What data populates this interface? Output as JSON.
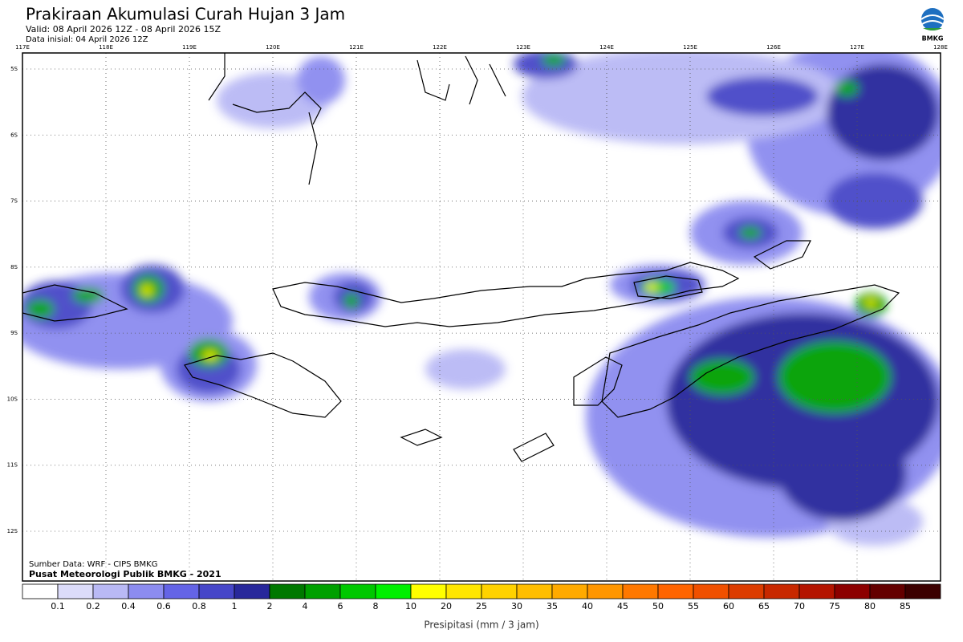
{
  "header": {
    "title": "Prakiraan Akumulasi Curah Hujan 3 Jam",
    "valid": "Valid: 08 April 2026 12Z - 08 April 2026 15Z",
    "initial": "Data inisial: 04 April 2026 12Z",
    "logo": "BMKG"
  },
  "map": {
    "lon_labels": [
      "117E",
      "118E",
      "119E",
      "120E",
      "121E",
      "122E",
      "123E",
      "124E",
      "125E",
      "126E",
      "127E",
      "128E"
    ],
    "lat_labels": [
      "5S",
      "6S",
      "7S",
      "8S",
      "9S",
      "10S",
      "11S",
      "12S"
    ],
    "source": "Sumber Data: WRF - CIPS BMKG",
    "credit": "Pusat Meteorologi Publik BMKG - 2021"
  },
  "legend": {
    "colors": [
      "#ffffff",
      "#dcdcfa",
      "#b9b9f5",
      "#8c8cf0",
      "#6464e6",
      "#4646c8",
      "#28289b",
      "#007800",
      "#00a000",
      "#00c800",
      "#00f000",
      "#ffff00",
      "#ffe600",
      "#ffd200",
      "#ffbe00",
      "#ffaa00",
      "#ff9600",
      "#ff7800",
      "#ff6400",
      "#f05000",
      "#dc3c00",
      "#c82800",
      "#b41400",
      "#8c0000",
      "#640000",
      "#3c0000"
    ],
    "labels": [
      "0.1",
      "0.2",
      "0.4",
      "0.6",
      "0.8",
      "1",
      "2",
      "4",
      "6",
      "8",
      "10",
      "20",
      "25",
      "30",
      "35",
      "40",
      "45",
      "50",
      "55",
      "60",
      "65",
      "70",
      "75",
      "80",
      "85"
    ],
    "title": "Presipitasi (mm / 3 jam)"
  }
}
